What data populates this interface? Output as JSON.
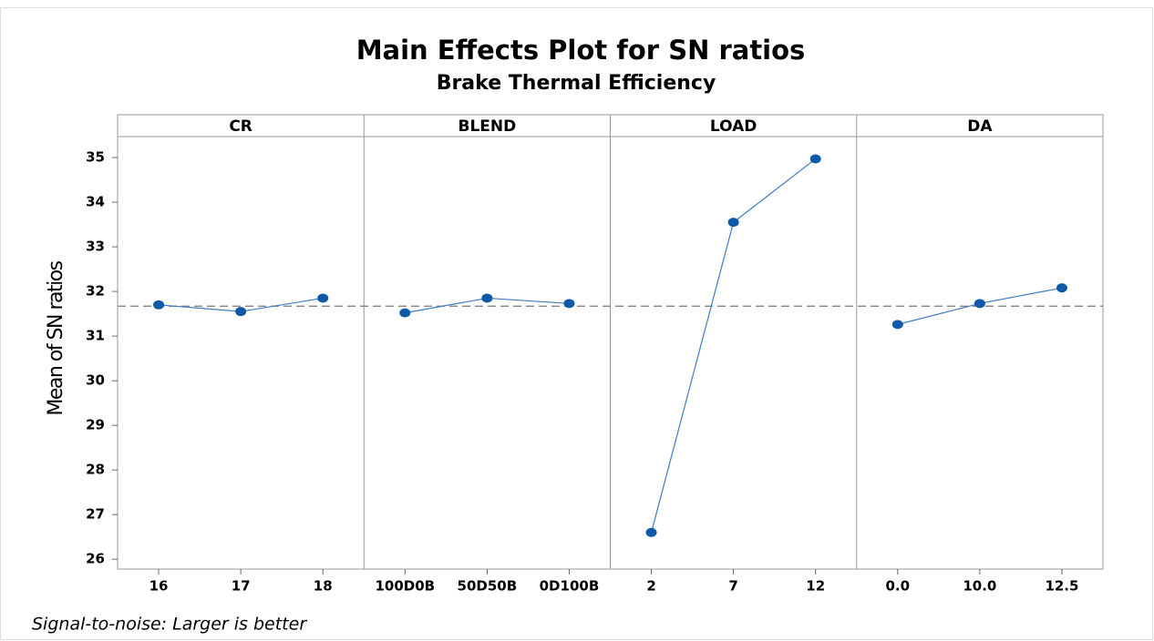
{
  "chart_data": {
    "type": "line",
    "title": "Main Effects Plot for SN ratios",
    "subtitle": "Brake Thermal Efficiency",
    "y_label": "Mean of SN ratios",
    "note": "Signal-to-noise: Larger is better",
    "ylim": [
      25.78,
      35.47
    ],
    "yticks": [
      26,
      27,
      28,
      29,
      30,
      31,
      32,
      33,
      34,
      35
    ],
    "reference_line": 31.67,
    "color": "#0f5aa8",
    "line_color": "#3d7cc4",
    "panels": [
      {
        "title": "CR",
        "categories": [
          "16",
          "17",
          "18"
        ],
        "values": [
          31.7,
          31.55,
          31.85
        ]
      },
      {
        "title": "BLEND",
        "categories": [
          "100D0B",
          "50D50B",
          "0D100B"
        ],
        "values": [
          31.52,
          31.85,
          31.73
        ]
      },
      {
        "title": "LOAD",
        "categories": [
          "2",
          "7",
          "12"
        ],
        "values": [
          26.6,
          33.55,
          34.97
        ]
      },
      {
        "title": "DA",
        "categories": [
          "0.0",
          "10.0",
          "12.5"
        ],
        "values": [
          31.26,
          31.73,
          32.08
        ]
      }
    ]
  }
}
